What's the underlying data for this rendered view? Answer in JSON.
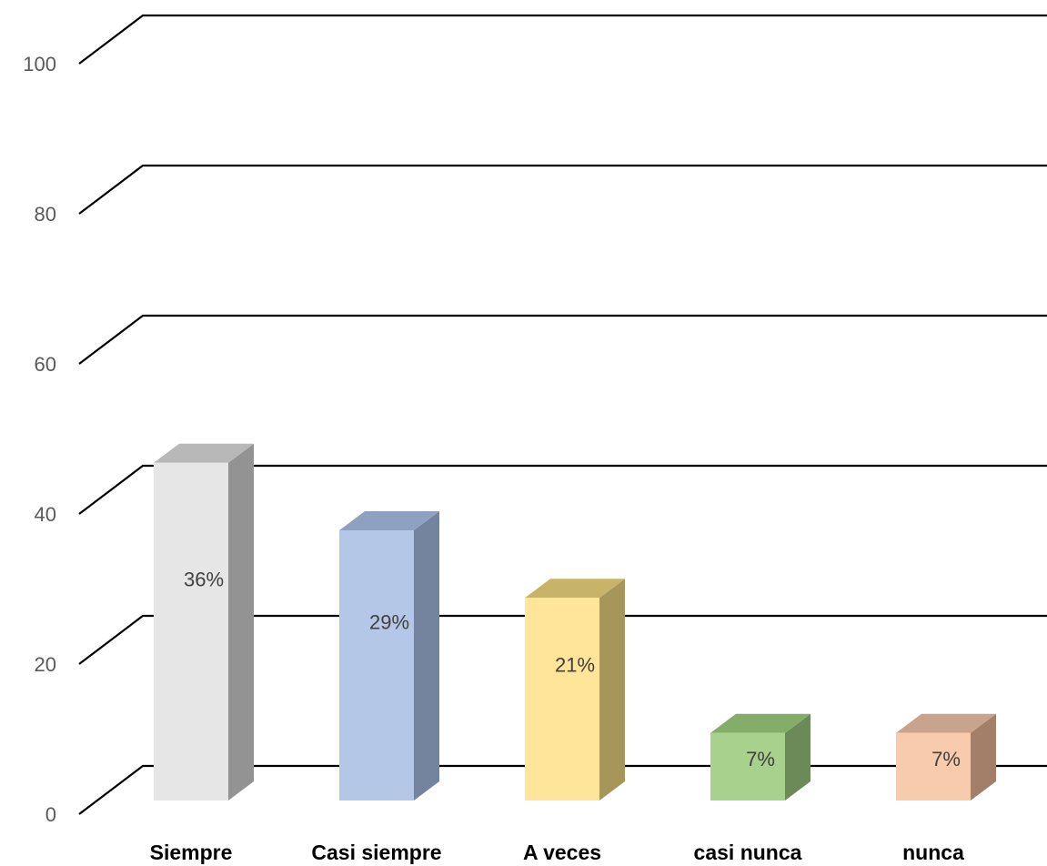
{
  "chart_data": {
    "type": "bar",
    "style": "3d-column",
    "title": "",
    "xlabel": "",
    "ylabel": "",
    "categories": [
      "Siempre",
      "Casi siempre",
      "A veces",
      "casi nunca",
      "nunca"
    ],
    "values": [
      45,
      36,
      27,
      9,
      9
    ],
    "data_labels": [
      "36%",
      "29%",
      "21%",
      "7%",
      "7%"
    ],
    "ylim": [
      0,
      100
    ],
    "yticks": [
      "0",
      "20",
      "40",
      "60",
      "80",
      "100"
    ],
    "grid": true,
    "legend": "none",
    "colors": {
      "front": [
        "#e7e6e6",
        "#b4c7e7",
        "#fee599",
        "#a9d18e",
        "#f8cbad"
      ],
      "side": [
        "#939393",
        "#74839e",
        "#a69659",
        "#6b8a58",
        "#a37f6a"
      ],
      "top": [
        "#b8b8b8",
        "#8ea1c1",
        "#c8b468",
        "#83ad69",
        "#c9a48c"
      ],
      "gridline": "#000000"
    }
  }
}
